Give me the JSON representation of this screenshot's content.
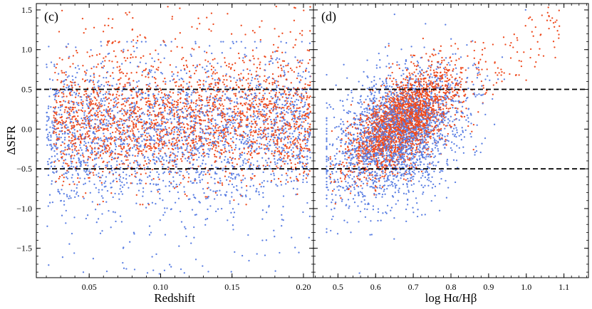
{
  "chart_data": [
    {
      "type": "scatter",
      "panel_label": "(c)",
      "xlabel": "Redshift",
      "ylabel": "ΔSFR",
      "xlim": [
        0.013,
        0.207
      ],
      "ylim": [
        -1.87,
        1.58
      ],
      "xticks": [
        0.05,
        0.1,
        0.15,
        0.2
      ],
      "xtick_labels": [
        "0.05",
        "0.10",
        "0.15",
        "0.20"
      ],
      "yticks": [
        -1.5,
        -1.0,
        -0.5,
        0.0,
        0.5,
        1.0,
        1.5
      ],
      "ytick_labels": [
        "−1.5",
        "−1.0",
        "−0.5",
        "0.0",
        "0.5",
        "1.0",
        "1.5"
      ],
      "reference_lines": [
        {
          "y": 0.5,
          "style": "dashed",
          "color": "#000000"
        },
        {
          "y": -0.5,
          "style": "dashed",
          "color": "#000000"
        }
      ],
      "series": [
        {
          "name": "blue sample",
          "color": "#5b7fe3",
          "approx_count": 2300,
          "distribution": {
            "x_range": [
              0.02,
              0.205
            ],
            "y_center": -0.05,
            "y_sd": 0.48,
            "y_range": [
              -1.85,
              1.1
            ]
          }
        },
        {
          "name": "red sample",
          "color": "#ee4a1e",
          "approx_count": 2300,
          "distribution": {
            "x_range": [
              0.025,
              0.205
            ],
            "y_center": 0.1,
            "y_sd": 0.36,
            "y_range": [
              -0.9,
              1.55
            ]
          }
        }
      ]
    },
    {
      "type": "scatter",
      "panel_label": "(d)",
      "xlabel": "log Hα/Hβ",
      "ylabel": "",
      "xlim": [
        0.435,
        1.165
      ],
      "ylim": [
        -1.87,
        1.58
      ],
      "xticks": [
        0.5,
        0.6,
        0.7,
        0.8,
        0.9,
        1.0,
        1.1
      ],
      "xtick_labels": [
        "0.5",
        "0.6",
        "0.7",
        "0.8",
        "0.9",
        "1.0",
        "1.1"
      ],
      "yticks": [
        -1.5,
        -1.0,
        -0.5,
        0.0,
        0.5,
        1.0,
        1.5
      ],
      "reference_lines": [
        {
          "y": 0.5,
          "style": "dashed",
          "color": "#000000"
        },
        {
          "y": -0.5,
          "style": "dashed",
          "color": "#000000"
        }
      ],
      "series": [
        {
          "name": "blue sample",
          "color": "#5b7fe3",
          "approx_count": 2300,
          "distribution": {
            "x_center": 0.66,
            "x_sd": 0.085,
            "trend": "ΔSFR ≈ -1.3 + 1.9·x",
            "y_scatter": 0.4
          }
        },
        {
          "name": "red sample",
          "color": "#ee4a1e",
          "approx_count": 2300,
          "distribution": {
            "x_center": 0.67,
            "x_sd": 0.07,
            "trend": "ΔSFR ≈ -1.85 + 2.9·x",
            "y_scatter": 0.26
          }
        }
      ]
    }
  ]
}
